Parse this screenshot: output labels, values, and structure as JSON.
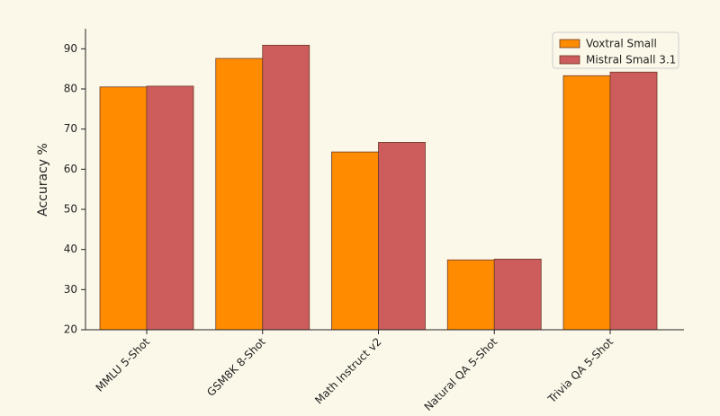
{
  "chart_data": {
    "type": "bar",
    "y_label": "Accuracy %",
    "categories": [
      "MMLU 5-Shot",
      "GSM8K 8-Shot",
      "Math Instruct v2",
      "Natural QA 5-Shot",
      "Trivia QA 5-Shot"
    ],
    "series": [
      {
        "name": "Voxtral Small",
        "color": "#ff8c00",
        "values": [
          80.5,
          87.6,
          64.3,
          37.4,
          83.3
        ]
      },
      {
        "name": "Mistral Small 3.1",
        "color": "#cd5c5c",
        "values": [
          80.7,
          90.9,
          66.7,
          37.6,
          84.2
        ]
      }
    ],
    "ylim": [
      20,
      95
    ],
    "yticks": [
      20,
      30,
      40,
      50,
      60,
      70,
      80,
      90
    ],
    "legend": "upper right"
  }
}
